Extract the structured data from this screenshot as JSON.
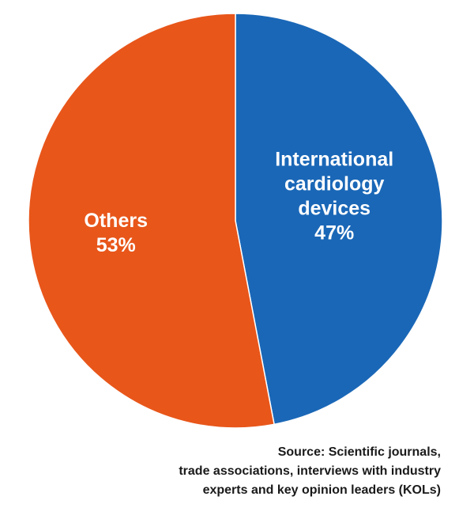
{
  "chart_data": {
    "type": "pie",
    "slices": [
      {
        "label_lines": [
          "International",
          "cardiology",
          "devices"
        ],
        "value": 47,
        "value_label": "47%",
        "color": "#1a67b7"
      },
      {
        "label_lines": [
          "Others"
        ],
        "value": 53,
        "value_label": "53%",
        "color": "#e8561a"
      }
    ],
    "start": "12 o'clock",
    "direction": "clockwise"
  },
  "source": {
    "lines": [
      "Source: Scientific journals,",
      "trade associations, interviews with industry",
      "experts and key opinion leaders (KOLs)"
    ]
  }
}
